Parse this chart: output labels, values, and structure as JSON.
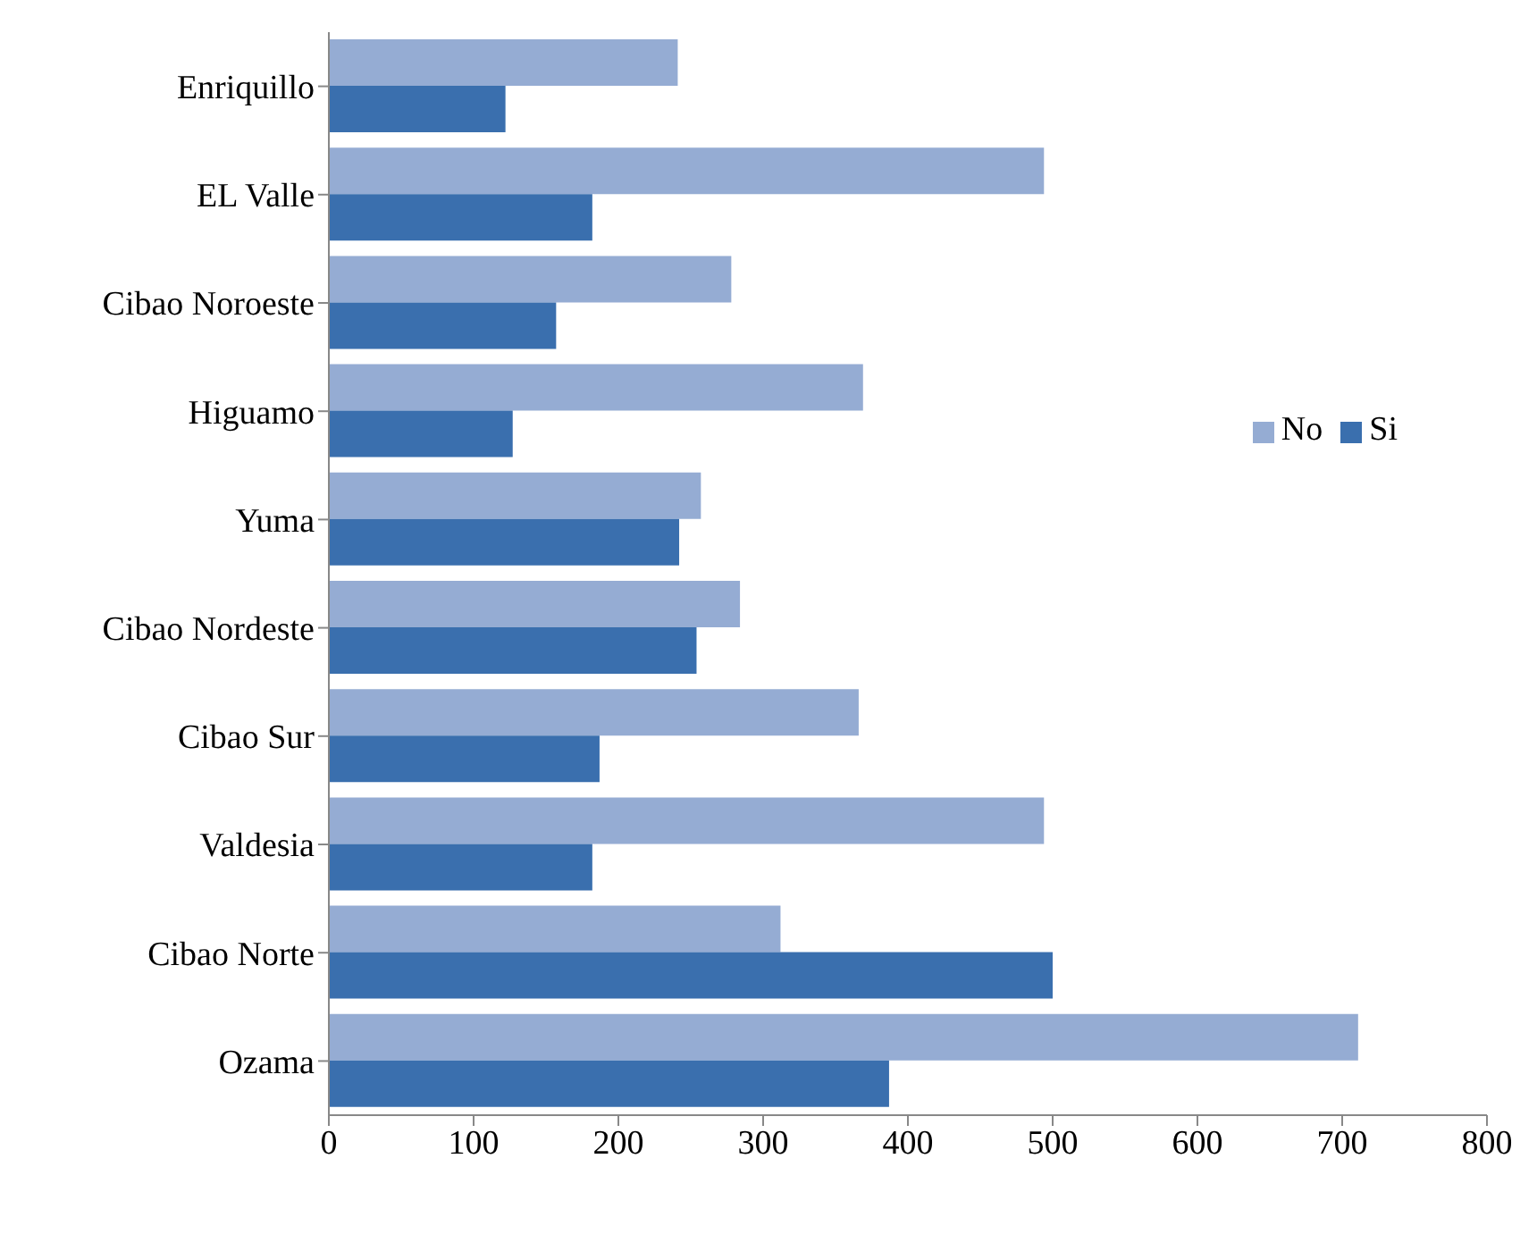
{
  "chart_data": {
    "type": "bar",
    "orientation": "horizontal",
    "categories": [
      "Enriquillo",
      "EL Valle",
      "Cibao Noroeste",
      "Higuamo",
      "Yuma",
      "Cibao Nordeste",
      "Cibao Sur",
      "Valdesia",
      "Cibao Norte",
      "Ozama"
    ],
    "series": [
      {
        "name": "No",
        "color": "#95acd3",
        "values": [
          241,
          494,
          278,
          369,
          257,
          284,
          366,
          494,
          312,
          711
        ]
      },
      {
        "name": "Si",
        "color": "#3a6fae",
        "values": [
          122,
          182,
          157,
          127,
          242,
          254,
          187,
          182,
          500,
          387
        ]
      }
    ],
    "xlim": [
      0,
      800
    ],
    "xticks": [
      0,
      100,
      200,
      300,
      400,
      500,
      600,
      700,
      800
    ],
    "grid": false,
    "legend": "right"
  }
}
